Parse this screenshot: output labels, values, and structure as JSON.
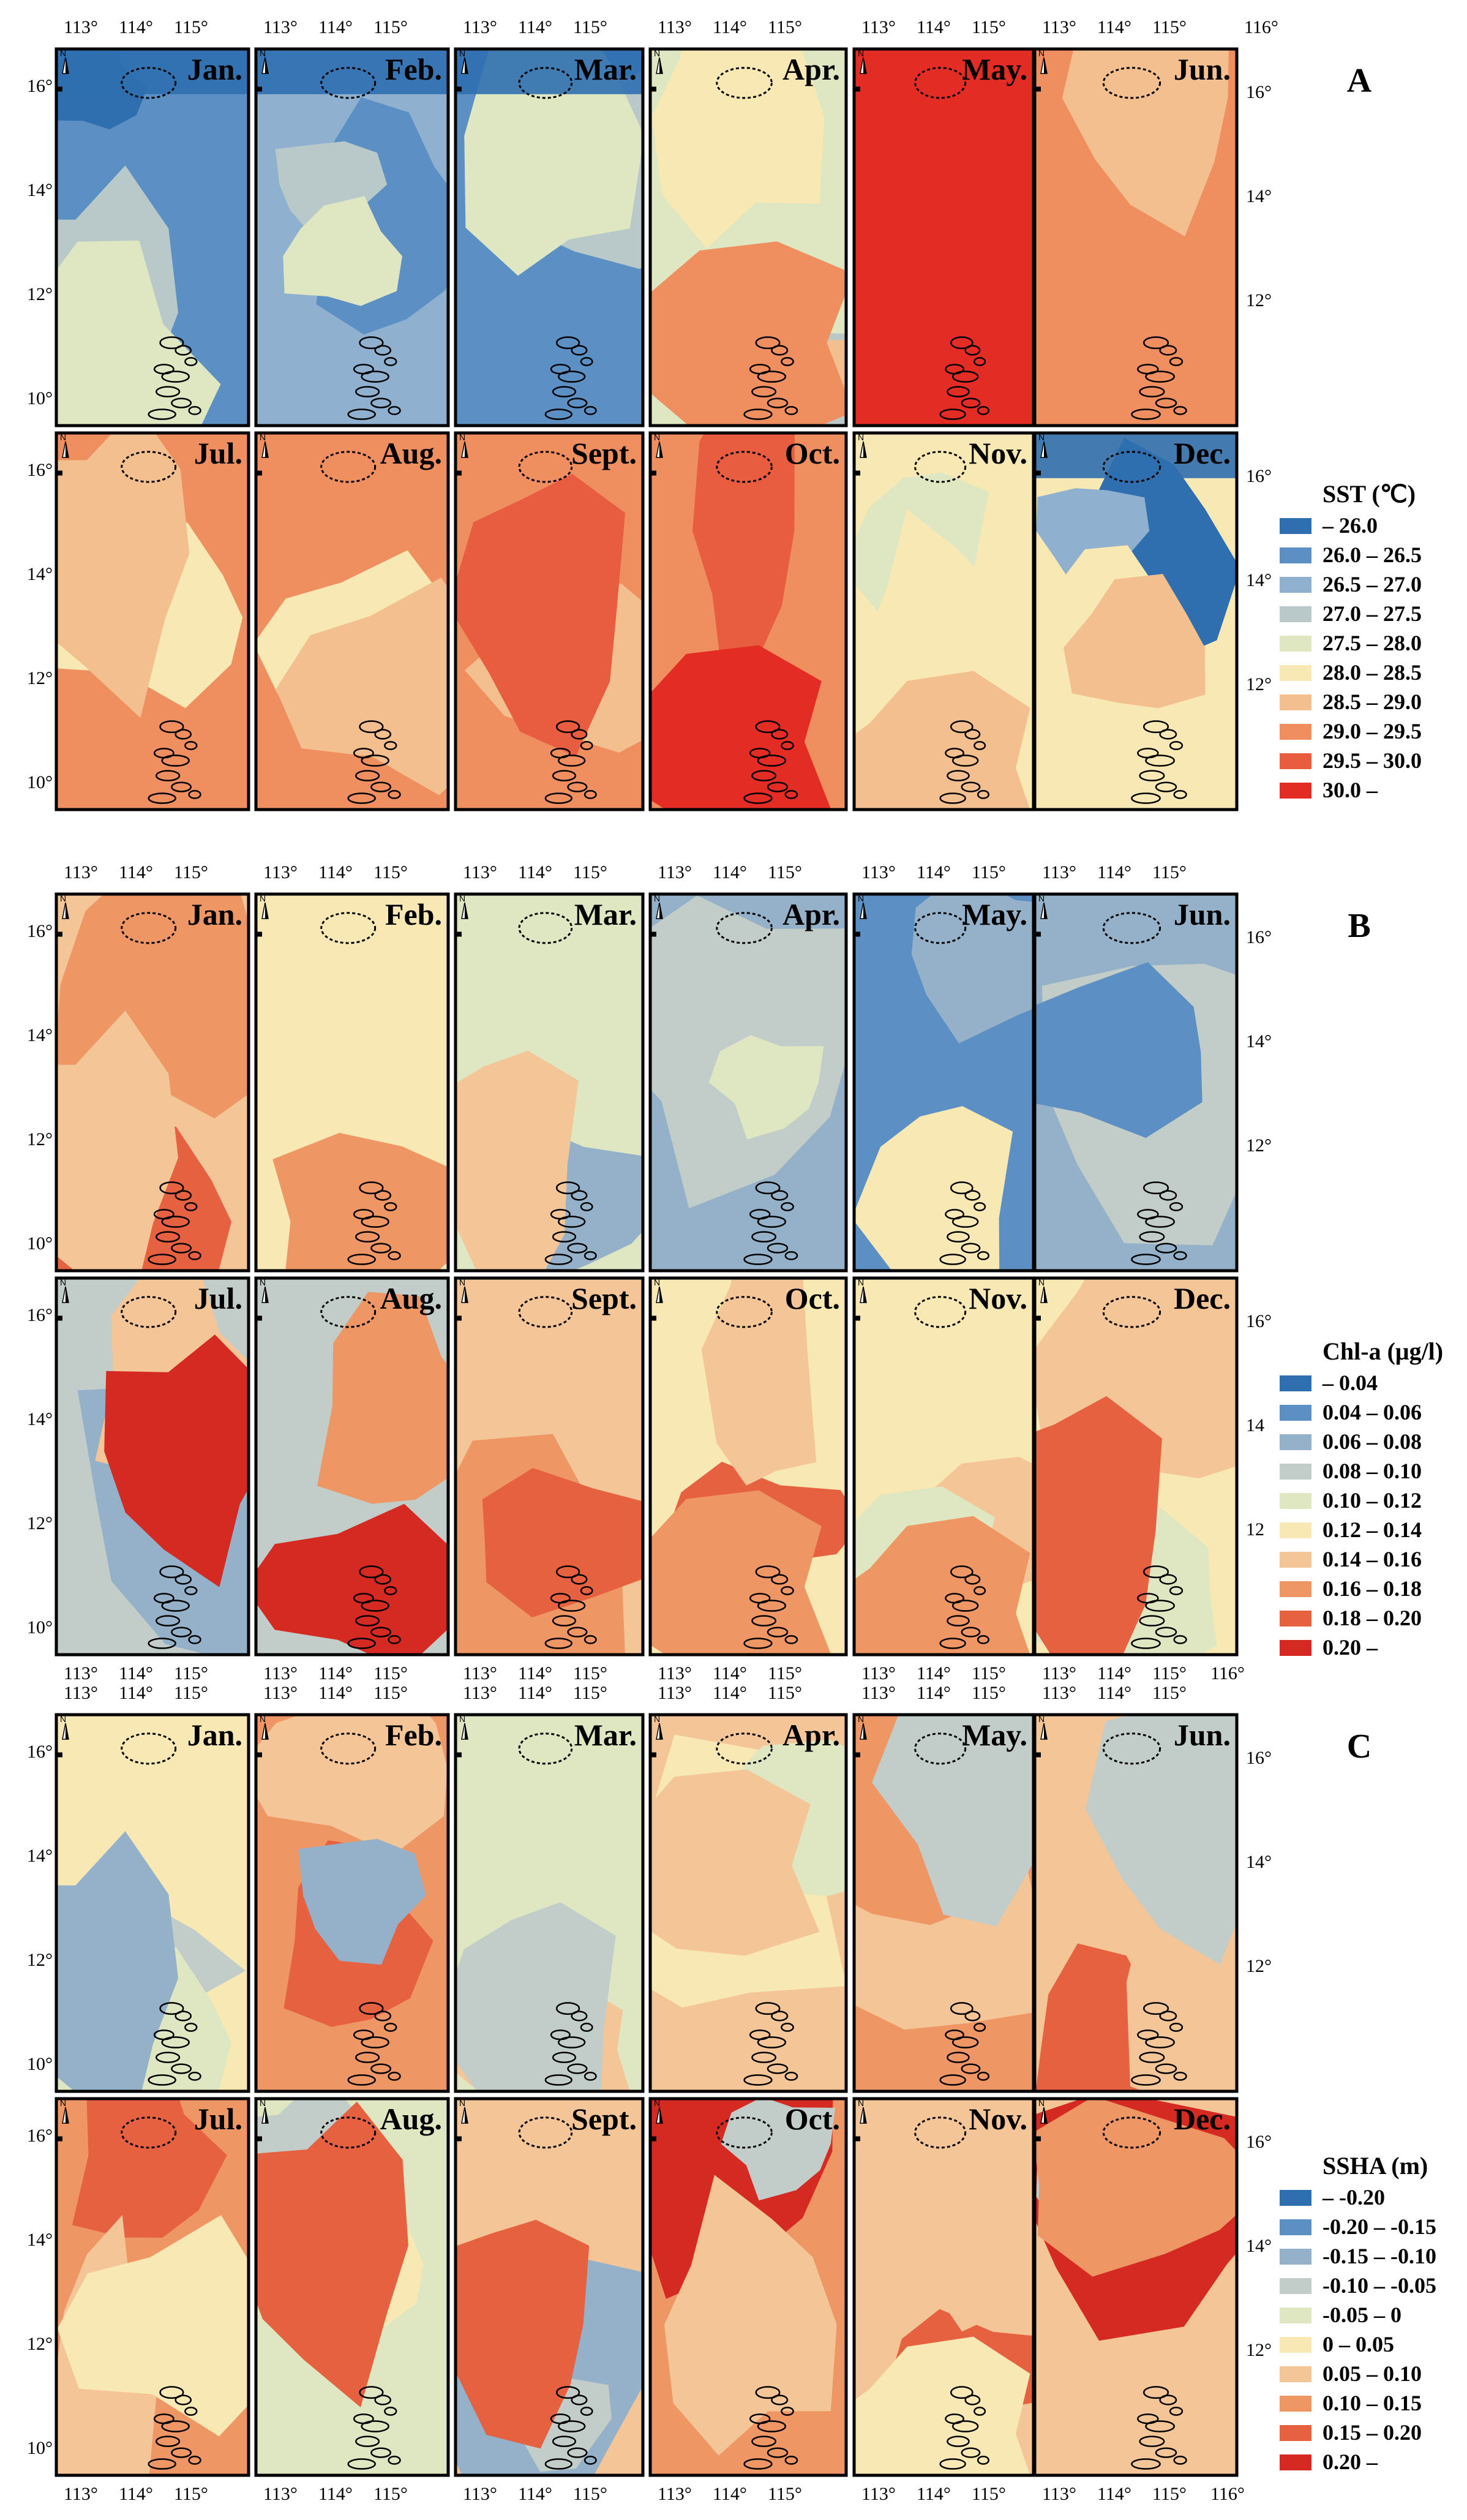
{
  "palette": {
    "sst": [
      "#2f6fb0",
      "#5c8fc4",
      "#8fb0cf",
      "#b9c9c9",
      "#dfe6c2",
      "#f8e8b4",
      "#f4bf8e",
      "#ef8f60",
      "#e85c3f",
      "#e32d24"
    ],
    "chl": [
      "#2f6fb0",
      "#5c8fc4",
      "#94b1c9",
      "#c2ccc8",
      "#dfe6c2",
      "#f8e8b4",
      "#f4c596",
      "#ef9665",
      "#e6613f",
      "#d42a22"
    ],
    "ssha": [
      "#2f6fb0",
      "#5c8fc4",
      "#94b1c9",
      "#c2ccc8",
      "#dfe6c2",
      "#f8e8b4",
      "#f4c596",
      "#ef9665",
      "#e6613f",
      "#d42a22"
    ],
    "frame": "#000000"
  },
  "months": [
    "Jan.",
    "Feb.",
    "Mar.",
    "Apr.",
    "May.",
    "Jun.",
    "Jul.",
    "Aug.",
    "Sept.",
    "Oct.",
    "Nov.",
    "Dec."
  ],
  "axis": {
    "lon_ticks": [
      "113°",
      "114°",
      "115°"
    ],
    "lon_right_extra": "116°",
    "lat_ticks": [
      "16°",
      "14°",
      "12°",
      "10°"
    ],
    "chl_right_lat_ticks": [
      "16°",
      "14",
      "12"
    ]
  },
  "sections": [
    {
      "id": "sst",
      "letter": "A",
      "legend_title": "SST (℃)",
      "legend_labels": [
        "– 26.0",
        "26.0 – 26.5",
        "26.5 – 27.0",
        "27.0 – 27.5",
        "27.5 – 28.0",
        "28.0 – 28.5",
        "28.5 – 29.0",
        "29.0 – 29.5",
        "29.5 – 30.0",
        "30.0 –"
      ],
      "background_class": [
        1,
        2,
        1,
        4,
        9,
        7,
        7,
        7,
        7,
        7,
        5,
        5
      ],
      "month_patterns": [
        [
          [
            0,
            0
          ],
          [
            1,
            3
          ],
          [
            3,
            2
          ],
          [
            4,
            4
          ]
        ],
        [
          [
            1,
            1
          ],
          [
            3,
            2
          ],
          [
            4,
            4
          ]
        ],
        [
          [
            0,
            0
          ],
          [
            1,
            2
          ],
          [
            3,
            3
          ],
          [
            4,
            4
          ]
        ],
        [
          [
            3,
            2
          ],
          [
            4,
            4
          ],
          [
            5,
            5
          ],
          [
            6,
            6
          ],
          [
            7,
            7
          ]
        ],
        [
          [
            9,
            9
          ]
        ],
        [
          [
            7,
            6
          ],
          [
            6,
            3
          ]
        ],
        [
          [
            7,
            6
          ],
          [
            5,
            4
          ],
          [
            6,
            2
          ]
        ],
        [
          [
            7,
            6
          ],
          [
            5,
            4
          ],
          [
            6,
            3
          ]
        ],
        [
          [
            7,
            6
          ],
          [
            6,
            4
          ],
          [
            8,
            2
          ]
        ],
        [
          [
            7,
            6
          ],
          [
            8,
            8
          ],
          [
            9,
            3
          ]
        ],
        [
          [
            4,
            4
          ],
          [
            5,
            6
          ],
          [
            6,
            3
          ]
        ],
        [
          [
            0,
            1
          ],
          [
            2,
            2
          ],
          [
            5,
            4
          ],
          [
            6,
            3
          ]
        ]
      ]
    },
    {
      "id": "chl",
      "letter": "B",
      "legend_title": "Chl-a (μg/l)",
      "legend_labels": [
        "– 0.04",
        "0.04 – 0.06",
        "0.06 – 0.08",
        "0.08 – 0.10",
        "0.10 – 0.12",
        "0.12 – 0.14",
        "0.14 – 0.16",
        "0.16 – 0.18",
        "0.18 – 0.20",
        "0.20 –"
      ],
      "background_class": [
        6,
        5,
        4,
        2,
        1,
        2,
        3,
        3,
        6,
        5,
        5,
        5
      ],
      "month_patterns": [
        [
          [
            7,
            6
          ],
          [
            8,
            4
          ],
          [
            6,
            2
          ]
        ],
        [
          [
            5,
            6
          ],
          [
            7,
            1
          ]
        ],
        [
          [
            2,
            2
          ],
          [
            6,
            3
          ]
        ],
        [
          [
            3,
            3
          ],
          [
            4,
            2
          ]
        ],
        [
          [
            2,
            2
          ],
          [
            5,
            3
          ]
        ],
        [
          [
            3,
            3
          ],
          [
            1,
            4
          ]
        ],
        [
          [
            2,
            3
          ],
          [
            6,
            6
          ],
          [
            9,
            8
          ]
        ],
        [
          [
            3,
            3
          ],
          [
            7,
            6
          ],
          [
            9,
            9
          ]
        ],
        [
          [
            7,
            6
          ],
          [
            8,
            7
          ],
          [
            6,
            4
          ]
        ],
        [
          [
            8,
            8
          ],
          [
            6,
            5
          ],
          [
            7,
            3
          ]
        ],
        [
          [
            6,
            5
          ],
          [
            4,
            4
          ],
          [
            7,
            3
          ]
        ],
        [
          [
            6,
            6
          ],
          [
            4,
            4
          ],
          [
            8,
            2
          ]
        ]
      ]
    },
    {
      "id": "ssha",
      "letter": "C",
      "legend_title": "SSHA (m)",
      "legend_labels": [
        "– -0.20",
        "-0.20 – -0.15",
        "-0.15 – -0.10",
        "-0.10 – -0.05",
        "-0.05 – 0",
        "0 – 0.05",
        "0.05 – 0.10",
        "0.10 – 0.15",
        "0.15 – 0.20",
        "0.20 –"
      ],
      "background_class": [
        5,
        7,
        4,
        6,
        7,
        6,
        7,
        4,
        6,
        7,
        6,
        6
      ],
      "month_patterns": [
        [
          [
            3,
            2
          ],
          [
            4,
            4
          ],
          [
            2,
            2
          ]
        ],
        [
          [
            8,
            7
          ],
          [
            6,
            4
          ],
          [
            2,
            1
          ]
        ],
        [
          [
            6,
            5
          ],
          [
            4,
            4
          ],
          [
            3,
            2
          ]
        ],
        [
          [
            5,
            6
          ],
          [
            4,
            4
          ],
          [
            6,
            3
          ]
        ],
        [
          [
            6,
            6
          ],
          [
            7,
            4
          ],
          [
            3,
            2
          ]
        ],
        [
          [
            8,
            7
          ],
          [
            6,
            5
          ],
          [
            3,
            2
          ]
        ],
        [
          [
            8,
            7
          ],
          [
            6,
            5
          ],
          [
            5,
            3
          ]
        ],
        [
          [
            5,
            5
          ],
          [
            3,
            3
          ],
          [
            8,
            2
          ]
        ],
        [
          [
            2,
            3
          ],
          [
            3,
            2
          ],
          [
            8,
            8
          ]
        ],
        [
          [
            9,
            9
          ],
          [
            3,
            2
          ],
          [
            6,
            5
          ]
        ],
        [
          [
            8,
            8
          ],
          [
            6,
            5
          ],
          [
            5,
            3
          ]
        ],
        [
          [
            9,
            9
          ],
          [
            3,
            2
          ],
          [
            7,
            6
          ]
        ]
      ]
    }
  ]
}
